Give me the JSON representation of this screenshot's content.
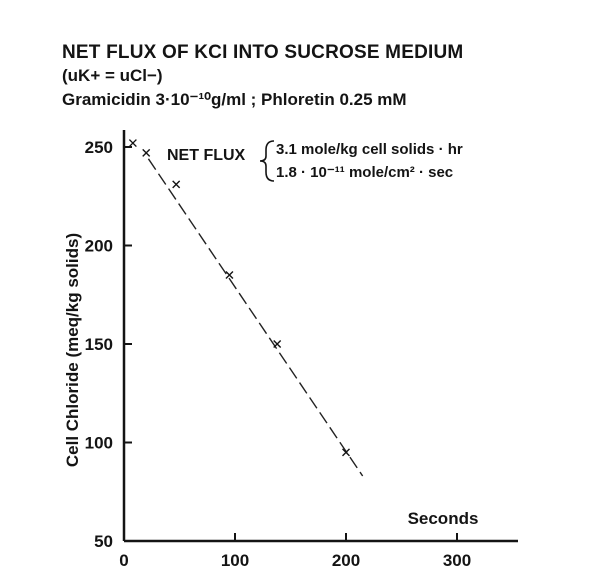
{
  "chart_data": {
    "type": "scatter",
    "title": "NET FLUX OF KCI INTO SUCROSE MEDIUM",
    "subtitle_lines": [
      "(uK+ = uCl−)",
      "Gramicidin 3·10⁻¹⁰g/ml ; Phloretin 0.25 mM"
    ],
    "xlabel": "Seconds",
    "ylabel": "Cell Chloride (meq/kg solids)",
    "xlim": [
      0,
      300
    ],
    "ylim": [
      50,
      250
    ],
    "x_ticks": [
      0,
      100,
      200,
      300
    ],
    "y_ticks": [
      50,
      100,
      150,
      200,
      250
    ],
    "series": [
      {
        "marker": "x",
        "x": [
          8,
          20,
          47,
          95,
          138,
          200
        ],
        "y": [
          252,
          247,
          231,
          185,
          150,
          95
        ]
      }
    ],
    "fit_line": {
      "style": "dashed",
      "x": [
        22,
        215
      ],
      "y": [
        244,
        83
      ]
    },
    "annotation": {
      "label": "NET FLUX",
      "lines": [
        "3.1 mole/kg cell solids · hr",
        "1.8 · 10⁻¹¹ mole/cm² · sec"
      ]
    },
    "grid": false
  }
}
